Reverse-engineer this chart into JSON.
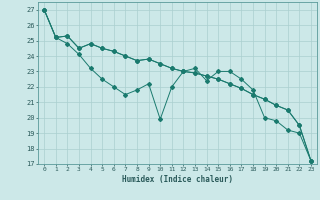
{
  "title": "",
  "xlabel": "Humidex (Indice chaleur)",
  "ylabel": "",
  "bg_color": "#cce8e8",
  "grid_color": "#aacfcf",
  "line_color": "#1a7a6e",
  "xlim": [
    -0.5,
    23.5
  ],
  "ylim": [
    17,
    27.5
  ],
  "xticks": [
    0,
    1,
    2,
    3,
    4,
    5,
    6,
    7,
    8,
    9,
    10,
    11,
    12,
    13,
    14,
    15,
    16,
    17,
    18,
    19,
    20,
    21,
    22,
    23
  ],
  "yticks": [
    17,
    18,
    19,
    20,
    21,
    22,
    23,
    24,
    25,
    26,
    27
  ],
  "series1": [
    27.0,
    25.2,
    25.3,
    24.5,
    24.8,
    24.5,
    24.3,
    24.0,
    23.7,
    23.8,
    23.5,
    23.2,
    23.0,
    22.9,
    22.7,
    22.5,
    22.2,
    21.9,
    21.5,
    21.2,
    20.8,
    20.5,
    19.5,
    17.2
  ],
  "series2": [
    27.0,
    25.2,
    24.8,
    24.1,
    23.2,
    22.5,
    22.0,
    21.5,
    21.8,
    22.2,
    19.9,
    22.0,
    23.0,
    23.2,
    22.4,
    23.0,
    23.0,
    22.5,
    21.8,
    20.0,
    19.8,
    19.2,
    19.0,
    17.2
  ],
  "series3": [
    27.0,
    25.2,
    25.3,
    24.5,
    24.8,
    24.5,
    24.3,
    24.0,
    23.7,
    23.8,
    23.5,
    23.2,
    23.0,
    22.9,
    22.7,
    22.5,
    22.2,
    21.9,
    21.5,
    21.2,
    20.8,
    20.5,
    19.5,
    17.2
  ]
}
